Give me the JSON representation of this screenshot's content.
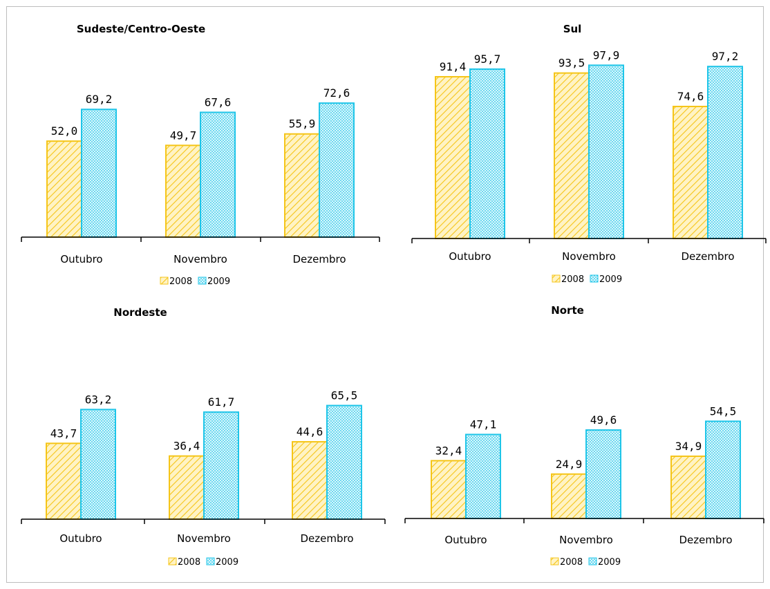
{
  "colors": {
    "s2008": "#f5c518",
    "s2009": "#1ec5e8"
  },
  "chart_data": [
    {
      "type": "bar",
      "title": "Sudeste/Centro-Oeste",
      "categories": [
        "Outubro",
        "Novembro",
        "Dezembro"
      ],
      "series": [
        {
          "name": "2008",
          "values": [
            "52,0",
            "49,7",
            "55,9"
          ]
        },
        {
          "name": "2009",
          "values": [
            "69,2",
            "67,6",
            "72,6"
          ]
        }
      ],
      "ylim": [
        0,
        100
      ],
      "legend": "bottom",
      "grid": false
    },
    {
      "type": "bar",
      "title": "Sul",
      "categories": [
        "Outubro",
        "Novembro",
        "Dezembro"
      ],
      "series": [
        {
          "name": "2008",
          "values": [
            "91,4",
            "93,5",
            "74,6"
          ]
        },
        {
          "name": "2009",
          "values": [
            "95,7",
            "97,9",
            "97,2"
          ]
        }
      ],
      "ylim": [
        0,
        100
      ],
      "legend": "bottom",
      "grid": false
    },
    {
      "type": "bar",
      "title": "Nordeste",
      "categories": [
        "Outubro",
        "Novembro",
        "Dezembro"
      ],
      "series": [
        {
          "name": "2008",
          "values": [
            "43,7",
            "36,4",
            "44,6"
          ]
        },
        {
          "name": "2009",
          "values": [
            "63,2",
            "61,7",
            "65,5"
          ]
        }
      ],
      "ylim": [
        0,
        100
      ],
      "legend": "bottom",
      "grid": false
    },
    {
      "type": "bar",
      "title": "Norte",
      "categories": [
        "Outubro",
        "Novembro",
        "Dezembro"
      ],
      "series": [
        {
          "name": "2008",
          "values": [
            "32,4",
            "24,9",
            "34,9"
          ]
        },
        {
          "name": "2009",
          "values": [
            "47,1",
            "49,6",
            "54,5"
          ]
        }
      ],
      "ylim": [
        0,
        100
      ],
      "legend": "bottom",
      "grid": false
    }
  ]
}
